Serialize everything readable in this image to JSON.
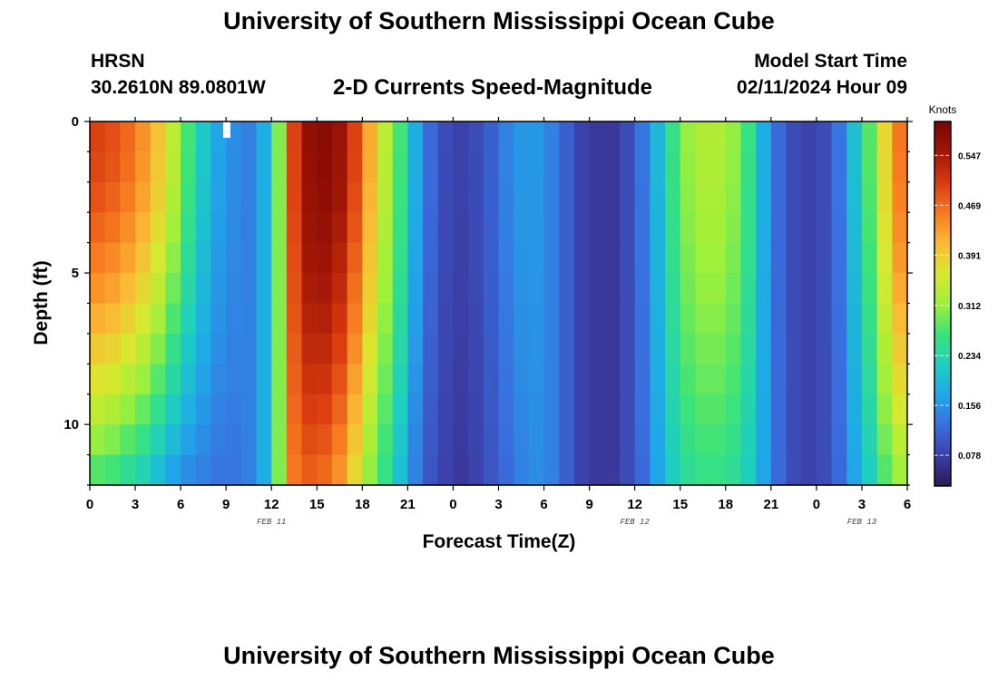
{
  "header": {
    "title": "University of Southern Mississippi Ocean Cube",
    "station_code": "HRSN",
    "station_coords": "30.2610N  89.0801W",
    "variable_title": "2-D Currents Speed-Magnitude",
    "start_label": "Model Start Time",
    "start_value": "02/11/2024 Hour 09"
  },
  "footer": {
    "title": "University of Southern Mississippi Ocean Cube"
  },
  "colormap": [
    "#2b1a52",
    "#3b3fa8",
    "#3a6fe0",
    "#1fa8e8",
    "#1ecfbf",
    "#3be37a",
    "#9ef03b",
    "#d9e82e",
    "#fbb935",
    "#f77a1f",
    "#d93a10",
    "#a01606",
    "#7a0403"
  ],
  "chart_data": {
    "type": "heatmap",
    "title": "2-D Currents Speed-Magnitude",
    "xlabel": "Forecast Time(Z)",
    "ylabel": "Depth (ft)",
    "x_ticks": [
      "0",
      "3",
      "6",
      "9",
      "12",
      "15",
      "18",
      "21",
      "0",
      "3",
      "6",
      "9",
      "12",
      "15",
      "18",
      "21",
      "0",
      "3",
      "6"
    ],
    "y_ticks": [
      "0",
      "5",
      "10"
    ],
    "date_labels": [
      "FEB 11",
      "FEB 12",
      "FEB 13"
    ],
    "colorbar": {
      "unit": "Knots",
      "range": [
        0.03,
        0.6
      ],
      "ticks": [
        "0.547",
        "0.469",
        "0.391",
        "0.312",
        "0.234",
        "0.156",
        "0.078"
      ]
    },
    "depth_rows": 12,
    "time_columns": 54,
    "surface_speed_knots": [
      0.5,
      0.49,
      0.47,
      0.44,
      0.4,
      0.34,
      0.27,
      0.21,
      0.17,
      0.15,
      0.14,
      0.18,
      0.3,
      0.5,
      0.57,
      0.58,
      0.56,
      0.5,
      0.42,
      0.34,
      0.27,
      0.18,
      0.12,
      0.09,
      0.08,
      0.09,
      0.11,
      0.14,
      0.16,
      0.16,
      0.14,
      0.11,
      0.08,
      0.07,
      0.07,
      0.09,
      0.13,
      0.19,
      0.26,
      0.31,
      0.33,
      0.33,
      0.31,
      0.26,
      0.18,
      0.12,
      0.09,
      0.08,
      0.09,
      0.13,
      0.2,
      0.28,
      0.38,
      0.46
    ],
    "deep_speed_knots": [
      0.28,
      0.27,
      0.25,
      0.23,
      0.2,
      0.17,
      0.15,
      0.14,
      0.13,
      0.13,
      0.14,
      0.18,
      0.3,
      0.46,
      0.48,
      0.47,
      0.44,
      0.38,
      0.31,
      0.26,
      0.2,
      0.14,
      0.1,
      0.08,
      0.07,
      0.08,
      0.1,
      0.12,
      0.14,
      0.15,
      0.14,
      0.11,
      0.08,
      0.07,
      0.07,
      0.09,
      0.12,
      0.17,
      0.22,
      0.25,
      0.26,
      0.26,
      0.25,
      0.22,
      0.17,
      0.12,
      0.09,
      0.08,
      0.09,
      0.12,
      0.17,
      0.22,
      0.28,
      0.32
    ]
  }
}
